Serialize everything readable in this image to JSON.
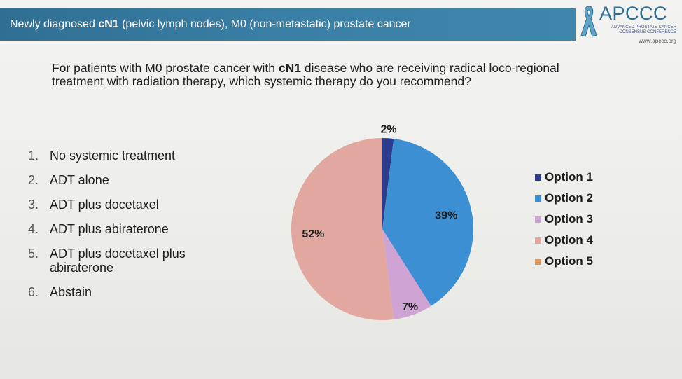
{
  "header": {
    "title_pre": "Newly diagnosed ",
    "title_bold": "cN1",
    "title_post": " (pelvic lymph nodes), M0 (non-metastatic) prostate cancer"
  },
  "logo": {
    "name": "APCCC",
    "line1": "ADVANCED PROSTATE CANCER",
    "line2": "CONSENSUS CONFERENCE",
    "url": "www.apccc.org"
  },
  "question": {
    "pre": "For patients with M0 prostate cancer with ",
    "bold": "cN1",
    "post": " disease who are receiving radical loco-regional treatment with radiation therapy, which systemic therapy do you recommend?"
  },
  "options": [
    {
      "num": "1.",
      "text": "No systemic treatment"
    },
    {
      "num": "2.",
      "text": "ADT alone"
    },
    {
      "num": "3.",
      "text": "ADT plus docetaxel"
    },
    {
      "num": "4.",
      "text": "ADT plus abiraterone"
    },
    {
      "num": "5.",
      "text": "ADT plus docetaxel plus abiraterone"
    },
    {
      "num": "6.",
      "text": "Abstain"
    }
  ],
  "chart_data": {
    "type": "pie",
    "categories": [
      "Option 1",
      "Option 2",
      "Option 3",
      "Option 4",
      "Option 5"
    ],
    "values": [
      2,
      39,
      7,
      52,
      0
    ],
    "data_labels": [
      "2%",
      "39%",
      "7%",
      "52%",
      ""
    ],
    "colors": [
      "#2b3c8f",
      "#3b8fd2",
      "#cfa3d4",
      "#e2a89f",
      "#d69762"
    ],
    "start_angle_deg": 0,
    "direction": "clockwise",
    "legend_position": "right"
  }
}
